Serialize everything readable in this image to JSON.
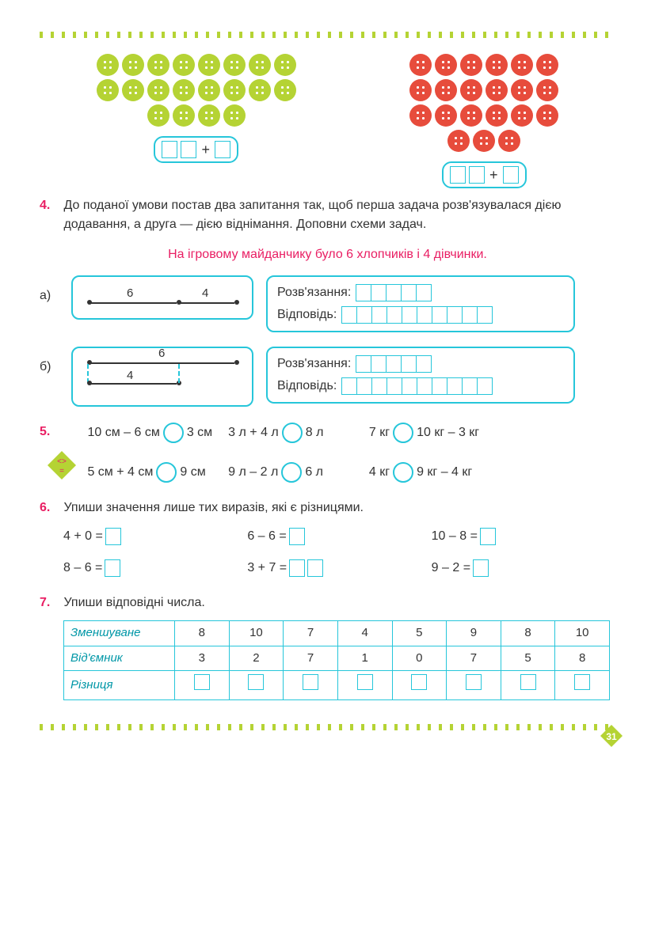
{
  "page_number": "31",
  "buttons": {
    "green_rows": [
      8,
      8,
      4
    ],
    "red_rows": [
      6,
      6,
      6,
      3
    ],
    "green_color": "#b5d334",
    "red_color": "#e74c3c"
  },
  "task4": {
    "num": "4.",
    "text": "До поданої умови постав два запитання так, щоб перша задача розв'язувалася дією додавання, а друга — дією віднімання. Доповни схеми задач.",
    "condition": "На ігровому майданчику було 6 хлопчиків і 4 дівчинки.",
    "a_label": "а)",
    "b_label": "б)",
    "seg_a_1": "6",
    "seg_a_2": "4",
    "seg_b_1": "6",
    "seg_b_2": "4",
    "solving_label": "Розв'язання:",
    "answer_label": "Відповідь:",
    "solving_cells": 5,
    "answer_cells": 10
  },
  "task5": {
    "num": "5.",
    "items": [
      {
        "l": "10 см – 6 см",
        "r": "3 см"
      },
      {
        "l": "3 л + 4 л",
        "r": "8 л"
      },
      {
        "l": "7 кг",
        "r": "10 кг – 3 кг"
      },
      {
        "l": "5 см + 4 см",
        "r": "9 см"
      },
      {
        "l": "9 л – 2 л",
        "r": "6 л"
      },
      {
        "l": "4 кг",
        "r": "9 кг – 4 кг"
      }
    ]
  },
  "task6": {
    "num": "6.",
    "text": "Упиши значення лише тих виразів, які є різницями.",
    "items": [
      {
        "expr": "4 + 0 =",
        "cells": 1
      },
      {
        "expr": "6 – 6 =",
        "cells": 1
      },
      {
        "expr": "10 – 8 =",
        "cells": 1
      },
      {
        "expr": "8 – 6 =",
        "cells": 1
      },
      {
        "expr": "3 + 7 =",
        "cells": 2
      },
      {
        "expr": "9 – 2 =",
        "cells": 1
      }
    ]
  },
  "task7": {
    "num": "7.",
    "text": "Упиши відповідні числа.",
    "headers": [
      "Зменшуване",
      "Від'ємник",
      "Різниця"
    ],
    "row1": [
      "8",
      "10",
      "7",
      "4",
      "5",
      "9",
      "8",
      "10"
    ],
    "row2": [
      "3",
      "2",
      "7",
      "1",
      "0",
      "7",
      "5",
      "8"
    ]
  },
  "colors": {
    "border": "#26c6da",
    "accent": "#e91e63",
    "green": "#b5d334"
  }
}
